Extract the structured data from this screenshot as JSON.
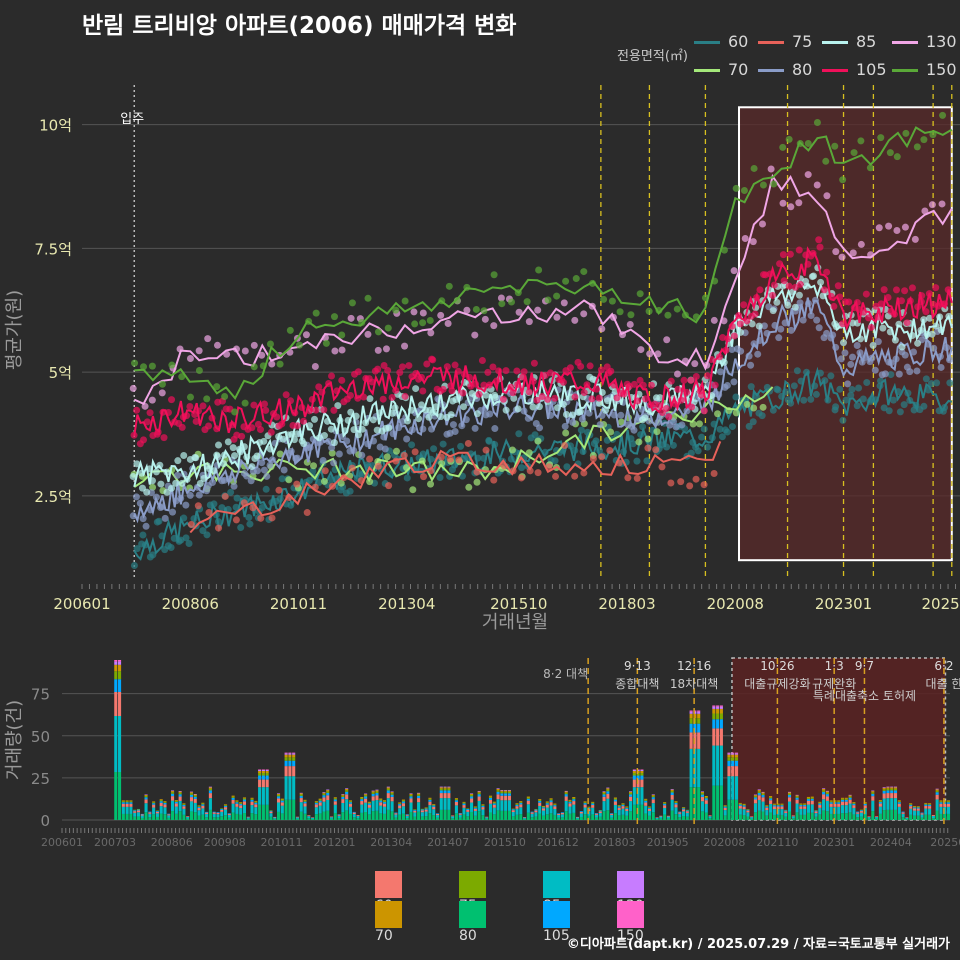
{
  "title": "반림 트리비앙 아파트(2006) 매매가격 변화",
  "credit": "©디아파트(dapt.kr) / 2025.07.29 / 자료=국토교통부 실거래가",
  "legend_top": {
    "label": "전용면적(㎡)",
    "items": [
      {
        "name": "60",
        "color": "#2a7f86"
      },
      {
        "name": "75",
        "color": "#e8625a"
      },
      {
        "name": "85",
        "color": "#b8f2ee"
      },
      {
        "name": "130",
        "color": "#f0a6e6"
      },
      {
        "name": "70",
        "color": "#a4e87a"
      },
      {
        "name": "80",
        "color": "#8a9cc8"
      },
      {
        "name": "105",
        "color": "#f0105a"
      },
      {
        "name": "150",
        "color": "#5aa838"
      }
    ]
  },
  "legend_bottom": {
    "items": [
      {
        "name": "60",
        "color": "#f4786e"
      },
      {
        "name": "75",
        "color": "#7caa00"
      },
      {
        "name": "85",
        "color": "#00bcc4"
      },
      {
        "name": "130",
        "color": "#c77cff"
      },
      {
        "name": "70",
        "color": "#cc9500"
      },
      {
        "name": "80",
        "color": "#00c070"
      },
      {
        "name": "105",
        "color": "#00a8ff"
      },
      {
        "name": "150",
        "color": "#ff61c9"
      }
    ]
  },
  "chart_data": [
    {
      "type": "line",
      "xlabel": "거래년월",
      "ylabel": "평균가(원)",
      "ylim": [
        0.8,
        10.8
      ],
      "y_unit": "억",
      "x_range": [
        "2006-01",
        "2025-07"
      ],
      "x_ticks": [
        "200601",
        "200806",
        "201011",
        "201304",
        "201510",
        "201803",
        "202008",
        "202301",
        "2025"
      ],
      "y_ticks": [
        "2.5억",
        "5억",
        "7.5억",
        "10억"
      ],
      "annotation": "입주",
      "annotation_date": "2007-03",
      "highlight_range": [
        "2020-09",
        "2025-06"
      ],
      "policy_dates": [
        "2017-08",
        "2018-09",
        "2019-12",
        "2021-10",
        "2023-01",
        "2023-09",
        "2025-01",
        "2025-06"
      ],
      "series": [
        {
          "name": "60",
          "points": [
            [
              "2007-03",
              1.4
            ],
            [
              "2008-06",
              1.9
            ],
            [
              "2009-06",
              2.2
            ],
            [
              "2010-11",
              2.6
            ],
            [
              "2012-06",
              3.1
            ],
            [
              "2014-01",
              3.2
            ],
            [
              "2015-10",
              3.4
            ],
            [
              "2017-06",
              3.5
            ],
            [
              "2018-09",
              3.6
            ],
            [
              "2019-12",
              3.7
            ],
            [
              "2020-08",
              4.2
            ],
            [
              "2021-06",
              4.5
            ],
            [
              "2022-06",
              4.8
            ],
            [
              "2023-01",
              4.3
            ],
            [
              "2024-01",
              4.6
            ],
            [
              "2025-06",
              4.4
            ]
          ]
        },
        {
          "name": "70",
          "points": [
            [
              "2007-03",
              2.9
            ],
            [
              "2009-01",
              3.0
            ],
            [
              "2011-01",
              3.05
            ],
            [
              "2013-06",
              3.0
            ],
            [
              "2015-01",
              3.0
            ],
            [
              "2017-06",
              3.7
            ],
            [
              "2019-06",
              4.1
            ],
            [
              "2021-06",
              4.7
            ]
          ]
        },
        {
          "name": "75",
          "points": [
            [
              "2008-06",
              1.9
            ],
            [
              "2010-06",
              2.4
            ],
            [
              "2013-06",
              3.2
            ],
            [
              "2016-01",
              3.15
            ],
            [
              "2018-06",
              3.1
            ],
            [
              "2019-12",
              3.1
            ],
            [
              "2020-04",
              3.6
            ]
          ]
        },
        {
          "name": "80",
          "points": [
            [
              "2007-03",
              2.1
            ],
            [
              "2008-06",
              2.7
            ],
            [
              "2009-06",
              3.0
            ],
            [
              "2010-11",
              3.4
            ],
            [
              "2012-06",
              3.7
            ],
            [
              "2014-01",
              4.1
            ],
            [
              "2015-10",
              4.3
            ],
            [
              "2017-06",
              4.2
            ],
            [
              "2018-09",
              4.1
            ],
            [
              "2019-12",
              4.3
            ],
            [
              "2020-08",
              5.2
            ],
            [
              "2021-06",
              6.0
            ],
            [
              "2022-06",
              6.3
            ],
            [
              "2023-01",
              5.1
            ],
            [
              "2024-01",
              5.3
            ],
            [
              "2025-06",
              5.5
            ]
          ]
        },
        {
          "name": "85",
          "points": [
            [
              "2007-03",
              2.9
            ],
            [
              "2008-06",
              3.0
            ],
            [
              "2009-06",
              3.3
            ],
            [
              "2010-11",
              3.8
            ],
            [
              "2012-06",
              4.1
            ],
            [
              "2014-01",
              4.4
            ],
            [
              "2015-10",
              4.6
            ],
            [
              "2017-06",
              4.5
            ],
            [
              "2018-09",
              4.4
            ],
            [
              "2019-12",
              4.6
            ],
            [
              "2020-08",
              5.9
            ],
            [
              "2021-06",
              6.5
            ],
            [
              "2022-06",
              6.8
            ],
            [
              "2023-01",
              5.8
            ],
            [
              "2024-01",
              5.9
            ],
            [
              "2025-06",
              5.9
            ]
          ]
        },
        {
          "name": "105",
          "points": [
            [
              "2007-03",
              3.9
            ],
            [
              "2008-06",
              4.2
            ],
            [
              "2009-06",
              4.0
            ],
            [
              "2010-11",
              4.3
            ],
            [
              "2012-06",
              4.8
            ],
            [
              "2014-01",
              4.9
            ],
            [
              "2015-10",
              4.8
            ],
            [
              "2017-06",
              4.8
            ],
            [
              "2018-09",
              4.4
            ],
            [
              "2019-12",
              4.6
            ],
            [
              "2020-08",
              6.0
            ],
            [
              "2021-06",
              6.9
            ],
            [
              "2022-06",
              7.3
            ],
            [
              "2023-01",
              6.1
            ],
            [
              "2024-01",
              6.3
            ],
            [
              "2025-06",
              6.4
            ]
          ]
        },
        {
          "name": "130",
          "points": [
            [
              "2007-03",
              4.3
            ],
            [
              "2008-06",
              5.4
            ],
            [
              "2009-06",
              5.3
            ],
            [
              "2010-11",
              5.4
            ],
            [
              "2012-06",
              5.8
            ],
            [
              "2014-01",
              6.0
            ],
            [
              "2015-10",
              6.2
            ],
            [
              "2017-06",
              6.3
            ],
            [
              "2018-09",
              5.4
            ],
            [
              "2019-12",
              5.3
            ],
            [
              "2020-08",
              7.0
            ],
            [
              "2021-06",
              8.8
            ],
            [
              "2022-06",
              8.6
            ],
            [
              "2023-01",
              7.4
            ],
            [
              "2024-01",
              7.6
            ],
            [
              "2025-06",
              8.3
            ]
          ]
        },
        {
          "name": "150",
          "points": [
            [
              "2007-03",
              4.85
            ],
            [
              "2008-01",
              5.0
            ],
            [
              "2009-06",
              4.5
            ],
            [
              "2010-11",
              5.9
            ],
            [
              "2012-06",
              6.1
            ],
            [
              "2014-01",
              6.4
            ],
            [
              "2015-10",
              6.8
            ],
            [
              "2017-06",
              6.7
            ],
            [
              "2018-09",
              6.4
            ],
            [
              "2019-12",
              6.2
            ],
            [
              "2020-08",
              8.5
            ],
            [
              "2021-06",
              9.0
            ],
            [
              "2022-06",
              9.8
            ],
            [
              "2023-01",
              9.2
            ],
            [
              "2024-06",
              9.7
            ],
            [
              "2025-06",
              9.9
            ]
          ]
        }
      ]
    },
    {
      "type": "bar",
      "stacked": true,
      "ylabel": "거래량(건)",
      "ylim": [
        0,
        95
      ],
      "y_ticks": [
        "0",
        "25",
        "50",
        "75"
      ],
      "x_ticks": [
        "200601",
        "200703",
        "200806",
        "200908",
        "201011",
        "201201",
        "201304",
        "201407",
        "201510",
        "201612",
        "201803",
        "201905",
        "202008",
        "202110",
        "202301",
        "202404",
        "20250"
      ],
      "monthly_volume_samples": [
        [
          "2007-03",
          95
        ],
        [
          "2007-06",
          12
        ],
        [
          "2010-06",
          30
        ],
        [
          "2011-01",
          40
        ],
        [
          "2014-06",
          20
        ],
        [
          "2015-10",
          18
        ],
        [
          "2018-09",
          30
        ],
        [
          "2019-12",
          65
        ],
        [
          "2020-06",
          68
        ],
        [
          "2020-10",
          40
        ],
        [
          "2021-10",
          10
        ],
        [
          "2023-01",
          12
        ],
        [
          "2024-04",
          20
        ],
        [
          "2025-06",
          12
        ]
      ],
      "annotations": [
        {
          "date": "2017-08",
          "label": "8·2 대책"
        },
        {
          "date": "2018-09",
          "label": "9·13",
          "sublabel": "종합대책"
        },
        {
          "date": "2019-12",
          "label": "12·16",
          "sublabel": "18차대책"
        },
        {
          "date": "2021-10",
          "label": "10·26",
          "sublabel": "대출규제강화"
        },
        {
          "date": "2023-01",
          "label": "1·3",
          "sublabel": "규제완화"
        },
        {
          "date": "2023-09",
          "label": "9·7",
          "sublabel": "특례대출축소 토허제"
        },
        {
          "date": "2025-06",
          "label": "6·2",
          "sublabel": "대출 한"
        }
      ]
    }
  ]
}
